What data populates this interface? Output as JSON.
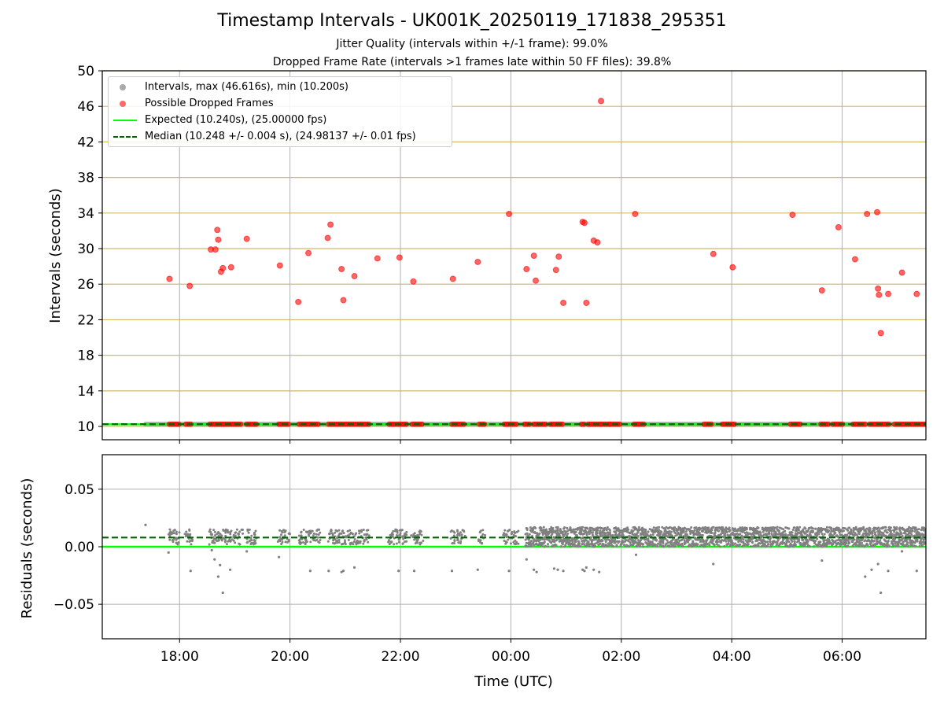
{
  "figure": {
    "title": "Timestamp Intervals - UK001K_20250119_171838_295351",
    "subtitle1": "Jitter Quality (intervals within +/-1 frame): 99.0%",
    "subtitle2": "Dropped Frame Rate (intervals >1 frames late within 50 FF files): 39.8%"
  },
  "colors": {
    "intervals": "#808080",
    "dropped": "#ff0000",
    "expected": "#00ff00",
    "median": "#006400",
    "gridline_gold": "#d4b96a",
    "gridline_gray": "#b0b0b0"
  },
  "chart_data": [
    {
      "type": "scatter",
      "name": "intervals",
      "ylabel": "Intervals (seconds)",
      "ylim": [
        8.5,
        50
      ],
      "yticks": [
        "10",
        "14",
        "18",
        "22",
        "26",
        "30",
        "34",
        "38",
        "42",
        "46",
        "50"
      ],
      "ytick_values": [
        10,
        14,
        18,
        22,
        26,
        30,
        34,
        38,
        42,
        46,
        50
      ],
      "xlim": [
        "16:36",
        "07:31"
      ],
      "xtick_values": [
        "18:00",
        "20:00",
        "22:00",
        "00:00",
        "02:00",
        "04:00",
        "06:00"
      ],
      "grid": "on",
      "legend_placement": "top-left",
      "legend": [
        "Intervals, max (46.616s), min (10.200s)",
        "Possible Dropped Frames",
        "Expected (10.240s), (25.00000 fps)",
        "Median (10.248 +/- 0.004 s), (24.98137 +/- 0.01 fps)"
      ],
      "expected_line": 10.24,
      "median_line": 10.248,
      "baseline_range": [
        "17:23",
        "07:31"
      ],
      "baseline_value": 10.25,
      "dropped_at_baseline_ranges": [
        [
          "17:49",
          "18:00"
        ],
        [
          "18:07",
          "18:14"
        ],
        [
          "18:33",
          "19:08"
        ],
        [
          "19:13",
          "19:25"
        ],
        [
          "19:48",
          "20:00"
        ],
        [
          "20:10",
          "20:32"
        ],
        [
          "20:42",
          "21:26"
        ],
        [
          "21:48",
          "21:55"
        ],
        [
          "21:56",
          "22:08"
        ],
        [
          "22:13",
          "22:24"
        ],
        [
          "22:56",
          "23:10"
        ],
        [
          "23:26",
          "23:32"
        ],
        [
          "23:53",
          "24:08"
        ],
        [
          "24:15",
          "24:22"
        ],
        [
          "24:25",
          "24:40"
        ],
        [
          "24:43",
          "24:58"
        ],
        [
          "25:17",
          "25:22"
        ],
        [
          "25:24",
          "25:38"
        ],
        [
          "25:39",
          "25:47"
        ],
        [
          "25:48",
          "26:00"
        ],
        [
          "26:14",
          "26:26"
        ],
        [
          "27:30",
          "27:38"
        ],
        [
          "27:50",
          "28:05"
        ],
        [
          "29:04",
          "29:15"
        ],
        [
          "29:37",
          "29:47"
        ],
        [
          "29:50",
          "30:02"
        ],
        [
          "30:12",
          "30:26"
        ],
        [
          "30:30",
          "30:53"
        ],
        [
          "30:57",
          "31:31"
        ]
      ],
      "dropped_points": [
        [
          "17:49",
          26.6
        ],
        [
          "18:11",
          25.8
        ],
        [
          "18:34",
          29.9
        ],
        [
          "18:39",
          29.9
        ],
        [
          "18:41",
          32.1
        ],
        [
          "18:42",
          31.0
        ],
        [
          "18:45",
          27.4
        ],
        [
          "18:47",
          27.8
        ],
        [
          "18:56",
          27.9
        ],
        [
          "19:13",
          31.1
        ],
        [
          "19:49",
          28.1
        ],
        [
          "20:09",
          24.0
        ],
        [
          "20:20",
          29.5
        ],
        [
          "20:41",
          31.2
        ],
        [
          "20:44",
          32.7
        ],
        [
          "20:56",
          27.7
        ],
        [
          "20:58",
          24.2
        ],
        [
          "21:10",
          26.9
        ],
        [
          "21:35",
          28.9
        ],
        [
          "21:59",
          29.0
        ],
        [
          "22:14",
          26.3
        ],
        [
          "22:57",
          26.6
        ],
        [
          "23:24",
          28.5
        ],
        [
          "23:58",
          33.9
        ],
        [
          "24:17",
          27.7
        ],
        [
          "24:25",
          29.2
        ],
        [
          "24:27",
          26.4
        ],
        [
          "24:49",
          27.6
        ],
        [
          "24:52",
          29.1
        ],
        [
          "24:57",
          23.9
        ],
        [
          "25:18",
          33.0
        ],
        [
          "25:20",
          32.9
        ],
        [
          "25:22",
          23.9
        ],
        [
          "25:30",
          30.9
        ],
        [
          "25:34",
          30.7
        ],
        [
          "25:38",
          46.6
        ],
        [
          "26:15",
          33.9
        ],
        [
          "27:40",
          29.4
        ],
        [
          "28:01",
          27.9
        ],
        [
          "29:06",
          33.8
        ],
        [
          "29:38",
          25.3
        ],
        [
          "29:56",
          32.4
        ],
        [
          "30:14",
          28.8
        ],
        [
          "30:27",
          33.9
        ],
        [
          "30:38",
          34.1
        ],
        [
          "30:39",
          25.5
        ],
        [
          "30:40",
          24.8
        ],
        [
          "30:42",
          20.5
        ],
        [
          "30:50",
          24.9
        ],
        [
          "31:05",
          27.3
        ],
        [
          "31:21",
          24.9
        ]
      ]
    },
    {
      "type": "scatter",
      "name": "residuals",
      "ylabel": "Residuals (seconds)",
      "xlabel": "Time (UTC)",
      "ylim": [
        -0.08,
        0.08
      ],
      "yticks": [
        "−0.05",
        "0.00",
        "0.05"
      ],
      "ytick_values": [
        -0.05,
        0.0,
        0.05
      ],
      "xlim": [
        "16:36",
        "07:31"
      ],
      "xticks": [
        "18:00",
        "20:00",
        "22:00",
        "00:00",
        "02:00",
        "04:00",
        "06:00"
      ],
      "xtick_values": [
        "18:00",
        "20:00",
        "22:00",
        "00:00",
        "02:00",
        "04:00",
        "06:00"
      ],
      "grid": "on",
      "expected_line": 0.0,
      "median_line": 0.008,
      "sparse_range": [
        "17:23",
        "24:16"
      ],
      "sparse_typical_range": [
        0.002,
        0.015
      ],
      "dense_range": [
        "24:16",
        "31:31"
      ],
      "dense_band": [
        0.0,
        0.017
      ],
      "outliers": [
        [
          "17:23",
          0.019
        ],
        [
          "17:48",
          -0.005
        ],
        [
          "18:12",
          -0.021
        ],
        [
          "18:35",
          -0.003
        ],
        [
          "18:38",
          -0.011
        ],
        [
          "18:42",
          -0.026
        ],
        [
          "18:44",
          -0.016
        ],
        [
          "18:47",
          -0.04
        ],
        [
          "18:55",
          -0.02
        ],
        [
          "19:13",
          -0.004
        ],
        [
          "19:48",
          -0.009
        ],
        [
          "20:22",
          -0.021
        ],
        [
          "20:42",
          -0.021
        ],
        [
          "20:56",
          -0.022
        ],
        [
          "20:58",
          -0.021
        ],
        [
          "21:10",
          -0.018
        ],
        [
          "21:58",
          -0.021
        ],
        [
          "22:15",
          -0.021
        ],
        [
          "22:56",
          -0.021
        ],
        [
          "23:24",
          -0.02
        ],
        [
          "23:58",
          -0.021
        ],
        [
          "24:17",
          -0.011
        ],
        [
          "24:25",
          -0.02
        ],
        [
          "24:28",
          -0.022
        ],
        [
          "24:47",
          -0.019
        ],
        [
          "24:51",
          -0.02
        ],
        [
          "24:57",
          -0.021
        ],
        [
          "25:18",
          -0.02
        ],
        [
          "25:20",
          -0.021
        ],
        [
          "25:22",
          -0.018
        ],
        [
          "25:30",
          -0.02
        ],
        [
          "25:36",
          -0.022
        ],
        [
          "26:16",
          -0.007
        ],
        [
          "27:40",
          -0.015
        ],
        [
          "29:38",
          -0.012
        ],
        [
          "30:25",
          -0.026
        ],
        [
          "30:32",
          -0.02
        ],
        [
          "30:39",
          -0.015
        ],
        [
          "30:42",
          -0.04
        ],
        [
          "30:50",
          -0.021
        ],
        [
          "31:05",
          -0.004
        ],
        [
          "31:21",
          -0.021
        ]
      ]
    }
  ]
}
